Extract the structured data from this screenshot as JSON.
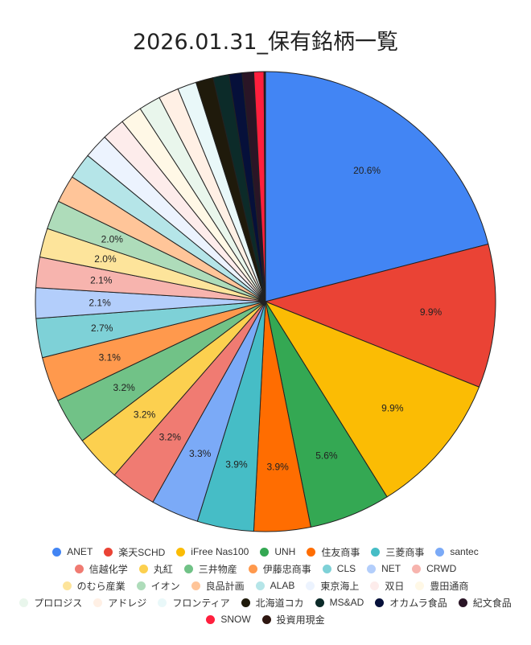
{
  "chart_data": {
    "type": "pie",
    "title": "2026.01.31_保有銘柄一覧",
    "start_angle_deg": 0,
    "direction": "clockwise",
    "legend_position": "bottom",
    "slices": [
      {
        "name": "ANET",
        "value": 20.6,
        "label": "20.6%",
        "color": "#4285f4"
      },
      {
        "name": "楽天SCHD",
        "value": 9.9,
        "label": "9.9%",
        "color": "#ea4335"
      },
      {
        "name": "iFree Nas100",
        "value": 9.9,
        "label": "9.9%",
        "color": "#fbbc04"
      },
      {
        "name": "UNH",
        "value": 5.6,
        "label": "5.6%",
        "color": "#34a853"
      },
      {
        "name": "住友商事",
        "value": 3.9,
        "label": "3.9%",
        "color": "#ff6d01"
      },
      {
        "name": "三菱商事",
        "value": 3.9,
        "label": "3.9%",
        "color": "#46bdc6"
      },
      {
        "name": "santec",
        "value": 3.3,
        "label": "3.3%",
        "color": "#7baaf7"
      },
      {
        "name": "信越化学",
        "value": 3.2,
        "label": "3.2%",
        "color": "#f07b72"
      },
      {
        "name": "丸紅",
        "value": 3.2,
        "label": "3.2%",
        "color": "#fcd04f"
      },
      {
        "name": "三井物産",
        "value": 3.2,
        "label": "3.2%",
        "color": "#71c287"
      },
      {
        "name": "伊藤忠商事",
        "value": 3.1,
        "label": "3.1%",
        "color": "#ff994d"
      },
      {
        "name": "CLS",
        "value": 2.7,
        "label": "2.7%",
        "color": "#7ed1d7"
      },
      {
        "name": "NET",
        "value": 2.1,
        "label": "2.1%",
        "color": "#b3cefb"
      },
      {
        "name": "CRWD",
        "value": 2.1,
        "label": "2.1%",
        "color": "#f7b4ae"
      },
      {
        "name": "のむら産業",
        "value": 2.0,
        "label": "2.0%",
        "color": "#fde49b"
      },
      {
        "name": "イオン",
        "value": 2.0,
        "label": "2.0%",
        "color": "#aedcba"
      },
      {
        "name": "良品計画",
        "value": 1.9,
        "label": "",
        "color": "#ffc599"
      },
      {
        "name": "ALAB",
        "value": 1.8,
        "label": "",
        "color": "#b5e5e8"
      },
      {
        "name": "東京海上",
        "value": 1.7,
        "label": "",
        "color": "#ecf3fe"
      },
      {
        "name": "双日",
        "value": 1.6,
        "label": "",
        "color": "#fdeceb"
      },
      {
        "name": "豊田通商",
        "value": 1.5,
        "label": "",
        "color": "#fff8e6"
      },
      {
        "name": "プロロジス",
        "value": 1.5,
        "label": "",
        "color": "#e9f6ec"
      },
      {
        "name": "アドレジ",
        "value": 1.4,
        "label": "",
        "color": "#fff0e5"
      },
      {
        "name": "フロンティア",
        "value": 1.3,
        "label": "",
        "color": "#e9f8f9"
      },
      {
        "name": "北海道コカ",
        "value": 1.2,
        "label": "",
        "color": "#1f1a0b"
      },
      {
        "name": "MS&AD",
        "value": 1.1,
        "label": "",
        "color": "#0c2b29"
      },
      {
        "name": "オカムラ食品",
        "value": 0.9,
        "label": "",
        "color": "#06103a"
      },
      {
        "name": "紀文食品",
        "value": 0.8,
        "label": "",
        "color": "#2a1526"
      },
      {
        "name": "SNOW",
        "value": 0.7,
        "label": "",
        "color": "#ff1f3d"
      },
      {
        "name": "投資用現金",
        "value": 0.1,
        "label": "",
        "color": "#2e1711"
      }
    ]
  }
}
